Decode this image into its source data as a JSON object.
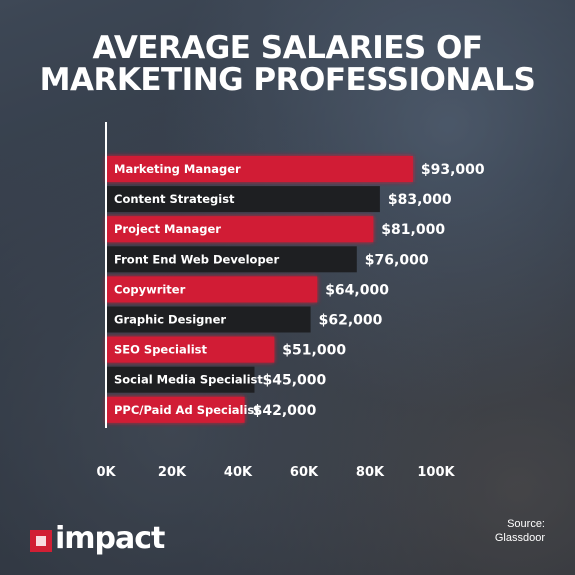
{
  "title": {
    "line1": "AVERAGE SALARIES OF",
    "line2": "MARKETING PROFESSIONALS"
  },
  "colors": {
    "highlight": "#d11f34",
    "dark": "#1e1f22"
  },
  "chart_data": {
    "type": "bar",
    "orientation": "horizontal",
    "title": "AVERAGE SALARIES OF MARKETING PROFESSIONALS",
    "categories": [
      "Marketing Manager",
      "Content Strategist",
      "Project Manager",
      "Front End Web Developer",
      "Copywriter",
      "Graphic Designer",
      "SEO Specialist",
      "Social Media Specialist",
      "PPC/Paid Ad Specialist"
    ],
    "values": [
      93000,
      83000,
      81000,
      76000,
      64000,
      62000,
      51000,
      45000,
      42000
    ],
    "value_labels": [
      "$93,000",
      "$83,000",
      "$81,000",
      "$76,000",
      "$64,000",
      "$62,000",
      "$51,000",
      "$45,000",
      "$42,000"
    ],
    "bar_colors": [
      "#d11f34",
      "#1e1f22",
      "#d11f34",
      "#1e1f22",
      "#d11f34",
      "#1e1f22",
      "#d11f34",
      "#1e1f22",
      "#d11f34"
    ],
    "xlim": [
      0,
      100000
    ],
    "xticks": [
      0,
      20000,
      40000,
      60000,
      80000,
      100000
    ],
    "xtick_labels": [
      "0K",
      "20K",
      "40K",
      "60K",
      "80K",
      "100K"
    ],
    "grid": false
  },
  "logo": {
    "text": "impact"
  },
  "source": {
    "line1": "Source:",
    "line2": "Glassdoor"
  }
}
